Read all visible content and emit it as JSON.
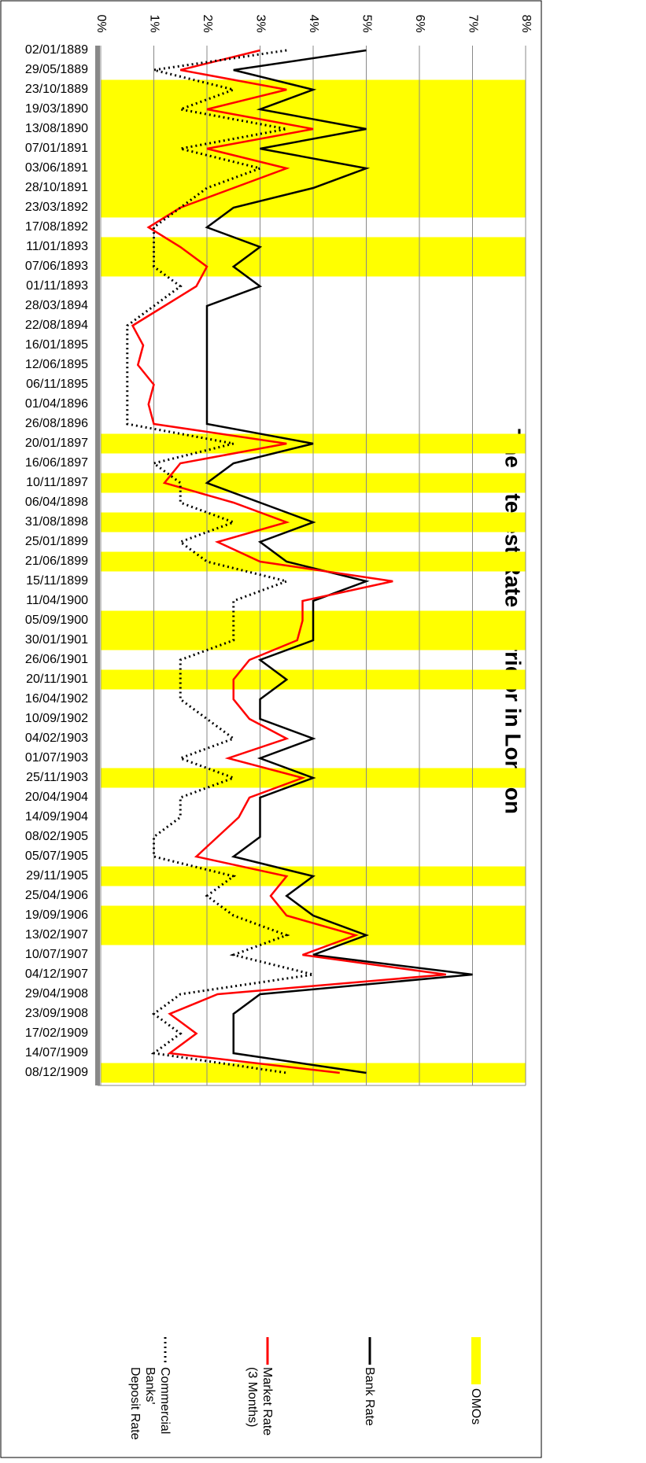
{
  "chart_data": {
    "type": "line",
    "title": "The Interest Rate Corridor in London",
    "categories": [
      "02/01/1889",
      "29/05/1889",
      "23/10/1889",
      "19/03/1890",
      "13/08/1890",
      "07/01/1891",
      "03/06/1891",
      "28/10/1891",
      "23/03/1892",
      "17/08/1892",
      "11/01/1893",
      "07/06/1893",
      "01/11/1893",
      "28/03/1894",
      "22/08/1894",
      "16/01/1895",
      "12/06/1895",
      "06/11/1895",
      "01/04/1896",
      "26/08/1896",
      "20/01/1897",
      "16/06/1897",
      "10/11/1897",
      "06/04/1898",
      "31/08/1898",
      "25/01/1899",
      "21/06/1899",
      "15/11/1899",
      "11/04/1900",
      "05/09/1900",
      "30/01/1901",
      "26/06/1901",
      "20/11/1901",
      "16/04/1902",
      "10/09/1902",
      "04/02/1903",
      "01/07/1903",
      "25/11/1903",
      "20/04/1904",
      "14/09/1904",
      "08/02/1905",
      "05/07/1905",
      "29/11/1905",
      "25/04/1906",
      "19/09/1906",
      "13/02/1907",
      "10/07/1907",
      "04/12/1907",
      "29/04/1908",
      "23/09/1908",
      "17/02/1909",
      "14/07/1909",
      "08/12/1909"
    ],
    "series": [
      {
        "name": "OMOs",
        "color": "#ffff00",
        "kind": "band",
        "values": [
          0,
          0,
          1,
          1,
          1,
          1,
          1,
          1,
          1,
          0,
          1,
          1,
          0,
          0,
          0,
          0,
          0,
          0,
          0,
          0,
          1,
          0,
          1,
          0,
          1,
          0,
          1,
          0,
          0,
          1,
          1,
          0,
          1,
          0,
          0,
          0,
          0,
          1,
          0,
          0,
          0,
          0,
          1,
          0,
          1,
          1,
          0,
          0,
          0,
          0,
          0,
          0,
          1
        ]
      },
      {
        "name": "Bank Rate",
        "color": "#000000",
        "dash": "none",
        "values": [
          5,
          2.5,
          4,
          3,
          5,
          3,
          5,
          4,
          2.5,
          2,
          3,
          2.5,
          3,
          2,
          2,
          2,
          2,
          2,
          2,
          2,
          4,
          2.5,
          2,
          3,
          4,
          3,
          3.5,
          5,
          4,
          4,
          4,
          3,
          3.5,
          3,
          3,
          4,
          3,
          4,
          3,
          3,
          3,
          2.5,
          4,
          3.5,
          4,
          5,
          4,
          7,
          3,
          2.5,
          2.5,
          2.5,
          5
        ]
      },
      {
        "name": "Market Rate (3 Months)",
        "color": "#ff0000",
        "dash": "none",
        "values": [
          3,
          1.5,
          3.5,
          2,
          4,
          2,
          3.5,
          2.5,
          1.5,
          0.9,
          1.5,
          2,
          1.8,
          1.2,
          0.6,
          0.8,
          0.7,
          1,
          0.9,
          1,
          3.5,
          1.5,
          1.2,
          2.5,
          3.5,
          2.2,
          3,
          5.5,
          3.8,
          3.8,
          3.7,
          2.8,
          2.5,
          2.5,
          2.8,
          3.5,
          2.4,
          3.8,
          2.8,
          2.6,
          2.2,
          1.8,
          3.5,
          3.2,
          3.5,
          4.8,
          3.8,
          6.5,
          2.2,
          1.3,
          1.8,
          1.3,
          4.5
        ]
      },
      {
        "name": "Commercial Banks' Deposit Rate",
        "color": "#000000",
        "dash": "2,4",
        "values": [
          3.5,
          1,
          2.5,
          1.5,
          3.5,
          1.5,
          3,
          2,
          1.5,
          1,
          1,
          1,
          1.5,
          1,
          0.5,
          0.5,
          0.5,
          0.5,
          0.5,
          0.5,
          2.5,
          1,
          1.5,
          1.5,
          2.5,
          1.5,
          2,
          3.5,
          2.5,
          2.5,
          2.5,
          1.5,
          1.5,
          1.5,
          2,
          2.5,
          1.5,
          2.5,
          1.5,
          1.5,
          1,
          1,
          2.5,
          2,
          2.5,
          3.5,
          2.5,
          4,
          1.5,
          1,
          1.5,
          1,
          3.5
        ]
      }
    ],
    "xlim": [
      0,
      8
    ],
    "xticks": [
      {
        "value": 0,
        "label": "0%"
      },
      {
        "value": 1,
        "label": "1%"
      },
      {
        "value": 2,
        "label": "2%"
      },
      {
        "value": 3,
        "label": "3%"
      },
      {
        "value": 4,
        "label": "4%"
      },
      {
        "value": 5,
        "label": "5%"
      },
      {
        "value": 6,
        "label": "6%"
      },
      {
        "value": 7,
        "label": "7%"
      },
      {
        "value": 8,
        "label": "8%"
      }
    ],
    "grid": true
  }
}
